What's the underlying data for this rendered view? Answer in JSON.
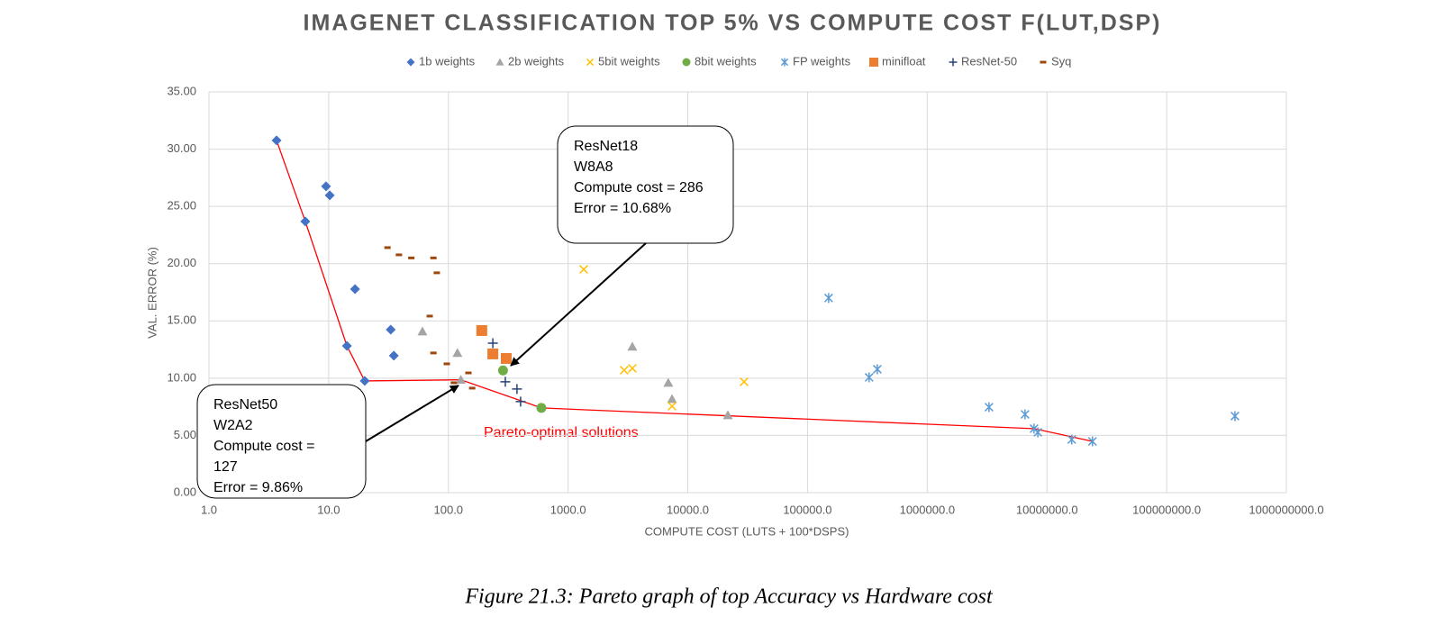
{
  "chart_data": {
    "type": "scatter",
    "title": "IMAGENET CLASSIFICATION TOP 5% VS COMPUTE COST F(LUT,DSP)",
    "x_label": "COMPUTE COST (LUTS + 100*DSPS)",
    "y_label": "VAL. ERROR (%)",
    "xscale": "log",
    "grid": true,
    "legend": "top",
    "xlim": [
      1,
      1000000000
    ],
    "ylim": [
      0,
      35
    ],
    "xticks": [
      {
        "value": 1,
        "label": "1.0"
      },
      {
        "value": 10,
        "label": "10.0"
      },
      {
        "value": 100,
        "label": "100.0"
      },
      {
        "value": 1000,
        "label": "1000.0"
      },
      {
        "value": 10000,
        "label": "10000.0"
      },
      {
        "value": 100000,
        "label": "100000.0"
      },
      {
        "value": 1000000,
        "label": "1000000.0"
      },
      {
        "value": 10000000,
        "label": "10000000.0"
      },
      {
        "value": 100000000,
        "label": "100000000.0"
      },
      {
        "value": 1000000000,
        "label": "1000000000.0"
      }
    ],
    "yticks": [
      {
        "value": 0,
        "label": "0.00"
      },
      {
        "value": 5,
        "label": "5.00"
      },
      {
        "value": 10,
        "label": "10.00"
      },
      {
        "value": 15,
        "label": "15.00"
      },
      {
        "value": 20,
        "label": "20.00"
      },
      {
        "value": 25,
        "label": "25.00"
      },
      {
        "value": 30,
        "label": "30.00"
      },
      {
        "value": 35,
        "label": "35.00"
      }
    ],
    "series": [
      {
        "name": "1b weights",
        "color": "#4472c4",
        "marker": "diamond",
        "x": [
          3.67,
          6.38,
          9.5,
          10.2,
          16.6,
          14.2,
          20,
          33,
          35
        ],
        "values": [
          30.76,
          23.68,
          26.75,
          25.96,
          17.78,
          12.82,
          9.76,
          14.24,
          11.96
        ]
      },
      {
        "name": "2b weights",
        "color": "#a5a5a5",
        "marker": "triangle",
        "x": [
          60.7,
          119,
          127,
          3440,
          6870,
          7380,
          21600
        ],
        "values": [
          14.08,
          12.2,
          9.86,
          12.75,
          9.6,
          8.18,
          6.77
        ]
      },
      {
        "name": "5bit weights",
        "color": "#ffc000",
        "marker": "x",
        "x": [
          1350,
          2940,
          3440,
          7380,
          29500
        ],
        "values": [
          19.5,
          10.7,
          10.86,
          7.55,
          9.68
        ]
      },
      {
        "name": "8bit weights",
        "color": "#70ad47",
        "marker": "circle",
        "x": [
          286,
          598
        ],
        "values": [
          10.68,
          7.4
        ]
      },
      {
        "name": "FP weights",
        "color": "#5b9bd5",
        "marker": "asterisk",
        "x": [
          150000,
          327000,
          383000,
          3280000,
          6560000,
          7800000,
          8400000,
          16100000,
          24000000,
          372000000
        ],
        "values": [
          17.0,
          10.07,
          10.78,
          7.47,
          6.84,
          5.59,
          5.27,
          4.64,
          4.48,
          6.69
        ]
      },
      {
        "name": "minifloat",
        "color": "#ed7d31",
        "marker": "square",
        "x": [
          190,
          235,
          304
        ],
        "values": [
          14.16,
          12.12,
          11.72
        ]
      },
      {
        "name": "ResNet-50",
        "color": "#264478",
        "marker": "plus",
        "x": [
          235,
          299,
          374,
          401
        ],
        "values": [
          13.06,
          9.68,
          9.05,
          7.95
        ]
      },
      {
        "name": "Syq",
        "color": "#9e480e",
        "marker": "dash",
        "x": [
          31,
          38.6,
          49,
          75,
          80,
          69.8,
          75,
          97,
          111,
          147,
          158
        ],
        "values": [
          21.4,
          20.77,
          20.5,
          20.5,
          19.2,
          15.42,
          12.2,
          11.25,
          9.6,
          10.46,
          9.13
        ]
      }
    ],
    "pareto_line": {
      "color": "#ff0000",
      "x": [
        3.67,
        6.38,
        14.2,
        20,
        127,
        598,
        7800000,
        24000000
      ],
      "values": [
        30.76,
        23.68,
        12.82,
        9.76,
        9.86,
        7.4,
        5.59,
        4.48
      ]
    },
    "pareto_label": "Pareto-optimal solutions",
    "callouts": [
      {
        "lines": [
          "ResNet18",
          "W8A8",
          "Compute cost = 286",
          "Error = 10.68%"
        ]
      },
      {
        "lines": [
          "ResNet50",
          "W2A2",
          "Compute cost =",
          "127",
          "Error = 9.86%"
        ]
      }
    ],
    "caption": "Figure 21.3:  Pareto graph of top Accuracy vs Hardware cost"
  }
}
